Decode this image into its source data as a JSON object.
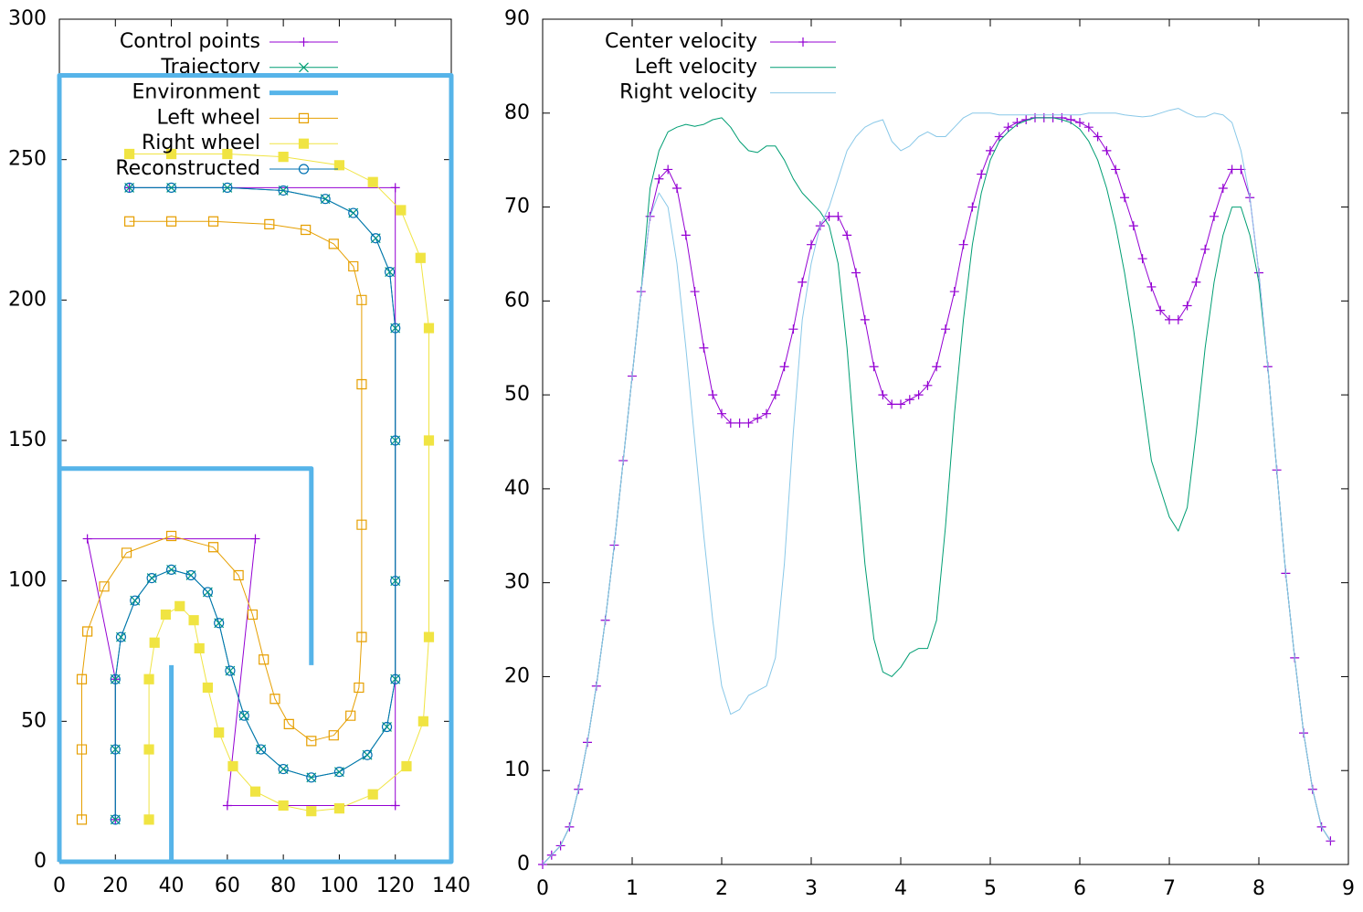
{
  "chart_data": [
    {
      "type": "line",
      "xlim": [
        0,
        140
      ],
      "xticks": [
        0,
        20,
        40,
        60,
        80,
        100,
        120,
        140
      ],
      "ylim": [
        0,
        300
      ],
      "yticks": [
        0,
        50,
        100,
        150,
        200,
        250,
        300
      ],
      "series": [
        {
          "name": "Control points",
          "color": "#9400d3",
          "marker": "plus",
          "line_width": 1,
          "x": [
            20,
            20,
            10,
            70,
            60,
            120,
            120,
            25
          ],
          "values": [
            15,
            65,
            115,
            115,
            20,
            20,
            240,
            240
          ]
        },
        {
          "name": "Trajectory",
          "color": "#009e73",
          "marker": "cross",
          "line_width": 1,
          "x": [
            20,
            20,
            20,
            22,
            27,
            33,
            40,
            47,
            53,
            57,
            61,
            66,
            72,
            80,
            90,
            100,
            110,
            117,
            120,
            120,
            120,
            120,
            118,
            113,
            105,
            95,
            80,
            60,
            40,
            25
          ],
          "values": [
            15,
            40,
            65,
            80,
            93,
            101,
            104,
            102,
            96,
            85,
            68,
            52,
            40,
            33,
            30,
            32,
            38,
            48,
            65,
            100,
            150,
            190,
            210,
            222,
            231,
            236,
            239,
            240,
            240,
            240
          ]
        },
        {
          "name": "Environment",
          "color": "#56b4e9",
          "marker": "none",
          "line_width": 5,
          "x": [
            0,
            140,
            140,
            0,
            0,
            null,
            0,
            90,
            90,
            null,
            40,
            40
          ],
          "values": [
            0,
            0,
            280,
            280,
            0,
            null,
            140,
            140,
            70,
            null,
            0,
            70
          ]
        },
        {
          "name": "Left wheel",
          "color": "#e69f00",
          "marker": "square-open",
          "line_width": 1,
          "x": [
            8,
            8,
            8,
            10,
            16,
            24,
            40,
            55,
            64,
            69,
            73,
            77,
            82,
            90,
            98,
            104,
            107,
            108,
            108,
            108,
            108,
            105,
            98,
            88,
            75,
            55,
            40,
            25
          ],
          "values": [
            15,
            40,
            65,
            82,
            98,
            110,
            116,
            112,
            102,
            88,
            72,
            58,
            49,
            43,
            45,
            52,
            62,
            80,
            120,
            170,
            200,
            212,
            220,
            225,
            227,
            228,
            228,
            228
          ]
        },
        {
          "name": "Right wheel",
          "color": "#f0e442",
          "marker": "square",
          "line_width": 1,
          "x": [
            32,
            32,
            32,
            34,
            38,
            43,
            48,
            50,
            53,
            57,
            62,
            70,
            80,
            90,
            100,
            112,
            124,
            130,
            132,
            132,
            132,
            129,
            122,
            112,
            100,
            80,
            60,
            40,
            25
          ],
          "values": [
            15,
            40,
            65,
            78,
            88,
            91,
            86,
            76,
            62,
            46,
            34,
            25,
            20,
            18,
            19,
            24,
            34,
            50,
            80,
            150,
            190,
            215,
            232,
            242,
            248,
            251,
            252,
            252,
            252
          ]
        },
        {
          "name": "Reconstructed",
          "color": "#0072b2",
          "marker": "circle-open",
          "line_width": 1,
          "x": [
            20,
            20,
            20,
            22,
            27,
            33,
            40,
            47,
            53,
            57,
            61,
            66,
            72,
            80,
            90,
            100,
            110,
            117,
            120,
            120,
            120,
            120,
            118,
            113,
            105,
            95,
            80,
            60,
            40,
            25
          ],
          "values": [
            15,
            40,
            65,
            80,
            93,
            101,
            104,
            102,
            96,
            85,
            68,
            52,
            40,
            33,
            30,
            32,
            38,
            48,
            65,
            100,
            150,
            190,
            210,
            222,
            231,
            236,
            239,
            240,
            240,
            240
          ]
        }
      ]
    },
    {
      "type": "line",
      "xlim": [
        0,
        9
      ],
      "xticks": [
        0,
        1,
        2,
        3,
        4,
        5,
        6,
        7,
        8,
        9
      ],
      "ylim": [
        0,
        90
      ],
      "yticks": [
        0,
        10,
        20,
        30,
        40,
        50,
        60,
        70,
        80,
        90
      ],
      "x": [
        0,
        0.1,
        0.2,
        0.3,
        0.4,
        0.5,
        0.6,
        0.7,
        0.8,
        0.9,
        1,
        1.1,
        1.2,
        1.3,
        1.4,
        1.5,
        1.6,
        1.7,
        1.8,
        1.9,
        2,
        2.1,
        2.2,
        2.3,
        2.4,
        2.5,
        2.6,
        2.7,
        2.8,
        2.9,
        3,
        3.1,
        3.2,
        3.3,
        3.4,
        3.5,
        3.6,
        3.7,
        3.8,
        3.9,
        4,
        4.1,
        4.2,
        4.3,
        4.4,
        4.5,
        4.6,
        4.7,
        4.8,
        4.9,
        5,
        5.1,
        5.2,
        5.3,
        5.4,
        5.5,
        5.6,
        5.7,
        5.8,
        5.9,
        6,
        6.1,
        6.2,
        6.3,
        6.4,
        6.5,
        6.6,
        6.7,
        6.8,
        6.9,
        7,
        7.1,
        7.2,
        7.3,
        7.4,
        7.5,
        7.6,
        7.7,
        7.8,
        7.9,
        8,
        8.1,
        8.2,
        8.3,
        8.4,
        8.5,
        8.6,
        8.7,
        8.8
      ],
      "series": [
        {
          "name": "Center velocity",
          "color": "#9400d3",
          "marker": "plus",
          "line_width": 1,
          "values": [
            0,
            1,
            2,
            4,
            8,
            13,
            19,
            26,
            34,
            43,
            52,
            61,
            69,
            73,
            74,
            72,
            67,
            61,
            55,
            50,
            48,
            47,
            47,
            47,
            47.5,
            48,
            50,
            53,
            57,
            62,
            66,
            68,
            69,
            69,
            67,
            63,
            58,
            53,
            50,
            49,
            49,
            49.5,
            50,
            51,
            53,
            57,
            61,
            66,
            70,
            73.5,
            76,
            77.5,
            78.5,
            79,
            79.3,
            79.5,
            79.5,
            79.5,
            79.5,
            79.3,
            79,
            78.5,
            77.5,
            76,
            74,
            71,
            68,
            64.5,
            61.5,
            59,
            58,
            58,
            59.5,
            62,
            65.5,
            69,
            72,
            74,
            74,
            71,
            63,
            53,
            42,
            31,
            22,
            14,
            8,
            4,
            2.5
          ]
        },
        {
          "name": "Left velocity",
          "color": "#009e73",
          "marker": "none",
          "line_width": 1,
          "values": [
            0,
            1,
            2,
            4,
            8,
            13,
            19,
            26,
            34,
            43,
            52,
            61,
            72,
            76,
            78,
            78.5,
            78.8,
            78.6,
            78.8,
            79.3,
            79.5,
            78.5,
            77,
            76,
            75.8,
            76.5,
            76.5,
            75,
            73,
            71.5,
            70.5,
            69.5,
            68,
            64,
            55,
            43,
            32,
            24,
            20.5,
            20,
            21,
            22.5,
            23,
            23,
            26,
            36,
            48,
            58,
            66,
            71.5,
            75,
            77,
            78,
            78.8,
            79.2,
            79.5,
            79.5,
            79.5,
            79.3,
            79,
            78.3,
            77,
            75,
            72,
            68,
            63,
            57,
            50,
            43,
            40,
            37,
            35.5,
            38,
            46,
            55,
            62,
            67,
            70,
            70,
            67,
            62,
            53,
            42,
            31,
            22,
            14,
            8,
            4,
            2.5
          ]
        },
        {
          "name": "Right velocity",
          "color": "#89c8e8",
          "marker": "none",
          "line_width": 1,
          "values": [
            0,
            1,
            2,
            4,
            8,
            13,
            19,
            26,
            34,
            43,
            52,
            61,
            69,
            71.5,
            70,
            64,
            55,
            45,
            35,
            26,
            19,
            16,
            16.5,
            18,
            18.5,
            19,
            22,
            32,
            46,
            58,
            64,
            68,
            70,
            73,
            76,
            77.5,
            78.5,
            79,
            79.3,
            77,
            76,
            76.5,
            77.5,
            78,
            77.5,
            77.5,
            78.5,
            79.5,
            80,
            80,
            80,
            79.8,
            79.8,
            79.8,
            79.8,
            79.8,
            79.8,
            79.8,
            79.8,
            79.8,
            79.8,
            80,
            80,
            80,
            80,
            79.8,
            79.7,
            79.6,
            79.7,
            80,
            80.3,
            80.5,
            80,
            79.6,
            79.6,
            80,
            79.8,
            79,
            76,
            71,
            63,
            53,
            42,
            31,
            22,
            14,
            8,
            4,
            2.5
          ]
        }
      ]
    }
  ]
}
